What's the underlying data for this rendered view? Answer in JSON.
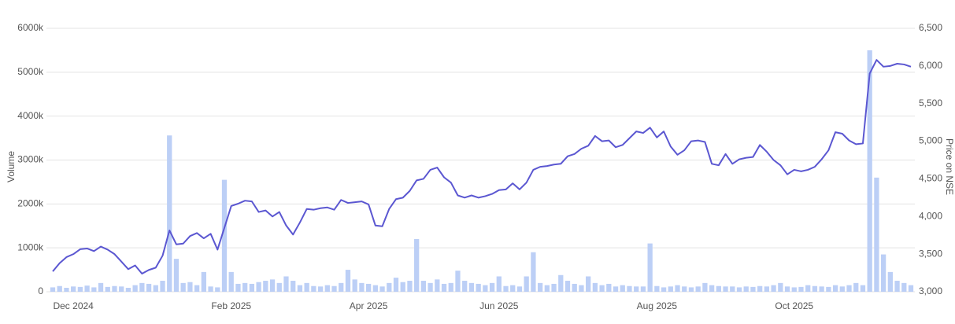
{
  "chart_data": {
    "type": "bar-line",
    "categories": [
      null,
      null,
      null,
      "Dec 2024",
      null,
      null,
      null,
      null,
      null,
      null,
      null,
      null,
      null,
      null,
      null,
      null,
      null,
      null,
      null,
      null,
      null,
      null,
      null,
      null,
      null,
      null,
      "Feb 2025",
      null,
      null,
      null,
      null,
      null,
      null,
      null,
      null,
      null,
      null,
      null,
      null,
      null,
      null,
      null,
      null,
      null,
      null,
      null,
      "Apr 2025",
      null,
      null,
      null,
      null,
      null,
      null,
      null,
      null,
      null,
      null,
      null,
      null,
      null,
      null,
      null,
      null,
      null,
      null,
      "Jun 2025",
      null,
      null,
      null,
      null,
      null,
      null,
      null,
      null,
      null,
      null,
      null,
      null,
      null,
      null,
      null,
      null,
      null,
      null,
      null,
      null,
      null,
      null,
      "Aug 2025",
      null,
      null,
      null,
      null,
      null,
      null,
      null,
      null,
      null,
      null,
      null,
      null,
      null,
      null,
      null,
      null,
      null,
      null,
      null,
      "Oct 2025",
      null,
      null,
      null,
      null,
      null,
      null,
      null,
      null,
      null,
      null,
      null,
      null,
      null,
      null,
      null,
      null,
      null
    ],
    "series": [
      {
        "name": "Volume",
        "type": "bar",
        "color": "#bccff6",
        "axis": "y",
        "values": [
          100,
          130,
          90,
          120,
          110,
          140,
          100,
          200,
          110,
          130,
          120,
          90,
          150,
          200,
          180,
          150,
          250,
          3560,
          750,
          200,
          220,
          150,
          450,
          120,
          100,
          2550,
          450,
          180,
          200,
          180,
          220,
          250,
          280,
          200,
          350,
          250,
          150,
          200,
          130,
          120,
          150,
          130,
          200,
          500,
          280,
          200,
          180,
          150,
          120,
          200,
          320,
          220,
          250,
          1200,
          250,
          200,
          280,
          180,
          200,
          480,
          250,
          200,
          180,
          150,
          200,
          350,
          130,
          150,
          120,
          350,
          900,
          200,
          150,
          180,
          380,
          250,
          180,
          150,
          350,
          200,
          150,
          180,
          120,
          150,
          130,
          120,
          120,
          1100,
          130,
          100,
          120,
          150,
          120,
          100,
          120,
          200,
          150,
          130,
          120,
          120,
          100,
          120,
          110,
          130,
          120,
          150,
          200,
          120,
          100,
          110,
          150,
          130,
          120,
          110,
          150,
          120,
          150,
          200,
          150,
          5500,
          2600,
          850,
          450,
          250,
          200,
          150
        ]
      },
      {
        "name": "Price on NSE",
        "type": "line",
        "color": "#5b57d1",
        "axis": "y2",
        "values": [
          3270,
          3380,
          3460,
          3500,
          3565,
          3575,
          3540,
          3600,
          3560,
          3500,
          3400,
          3300,
          3350,
          3240,
          3290,
          3320,
          3480,
          3815,
          3630,
          3640,
          3740,
          3780,
          3710,
          3770,
          3560,
          3850,
          4140,
          4170,
          4210,
          4200,
          4060,
          4080,
          4000,
          4060,
          3880,
          3760,
          3920,
          4100,
          4090,
          4110,
          4120,
          4090,
          4220,
          4180,
          4190,
          4200,
          4160,
          3880,
          3870,
          4100,
          4230,
          4250,
          4340,
          4480,
          4500,
          4620,
          4650,
          4520,
          4450,
          4280,
          4250,
          4280,
          4250,
          4270,
          4300,
          4350,
          4360,
          4440,
          4360,
          4450,
          4620,
          4660,
          4670,
          4690,
          4700,
          4800,
          4830,
          4900,
          4940,
          5070,
          5000,
          5010,
          4920,
          4950,
          5040,
          5130,
          5110,
          5180,
          5050,
          5130,
          4930,
          4820,
          4880,
          5000,
          5010,
          4990,
          4700,
          4680,
          4830,
          4700,
          4760,
          4780,
          4790,
          4950,
          4860,
          4750,
          4680,
          4560,
          4620,
          4600,
          4620,
          4660,
          4760,
          4880,
          5120,
          5100,
          5010,
          4960,
          4970,
          5900,
          6080,
          5990,
          6000,
          6030,
          6020,
          5990
        ]
      }
    ],
    "ylim": [
      0,
      6000
    ],
    "yticks": [
      {
        "value": 0,
        "label": "0"
      },
      {
        "value": 1000,
        "label": "1000k"
      },
      {
        "value": 2000,
        "label": "2000k"
      },
      {
        "value": 3000,
        "label": "3000k"
      },
      {
        "value": 4000,
        "label": "4000k"
      },
      {
        "value": 5000,
        "label": "5000k"
      },
      {
        "value": 6000,
        "label": "6000k"
      }
    ],
    "y2lim": [
      3000,
      6500
    ],
    "y2ticks": [
      {
        "value": 3000,
        "label": "3,000"
      },
      {
        "value": 3500,
        "label": "3,500"
      },
      {
        "value": 4000,
        "label": "4,000"
      },
      {
        "value": 4500,
        "label": "4,500"
      },
      {
        "value": 5000,
        "label": "5,000"
      },
      {
        "value": 5500,
        "label": "5,500"
      },
      {
        "value": 6000,
        "label": "6,000"
      },
      {
        "value": 6500,
        "label": "6,500"
      }
    ],
    "grid": true
  }
}
